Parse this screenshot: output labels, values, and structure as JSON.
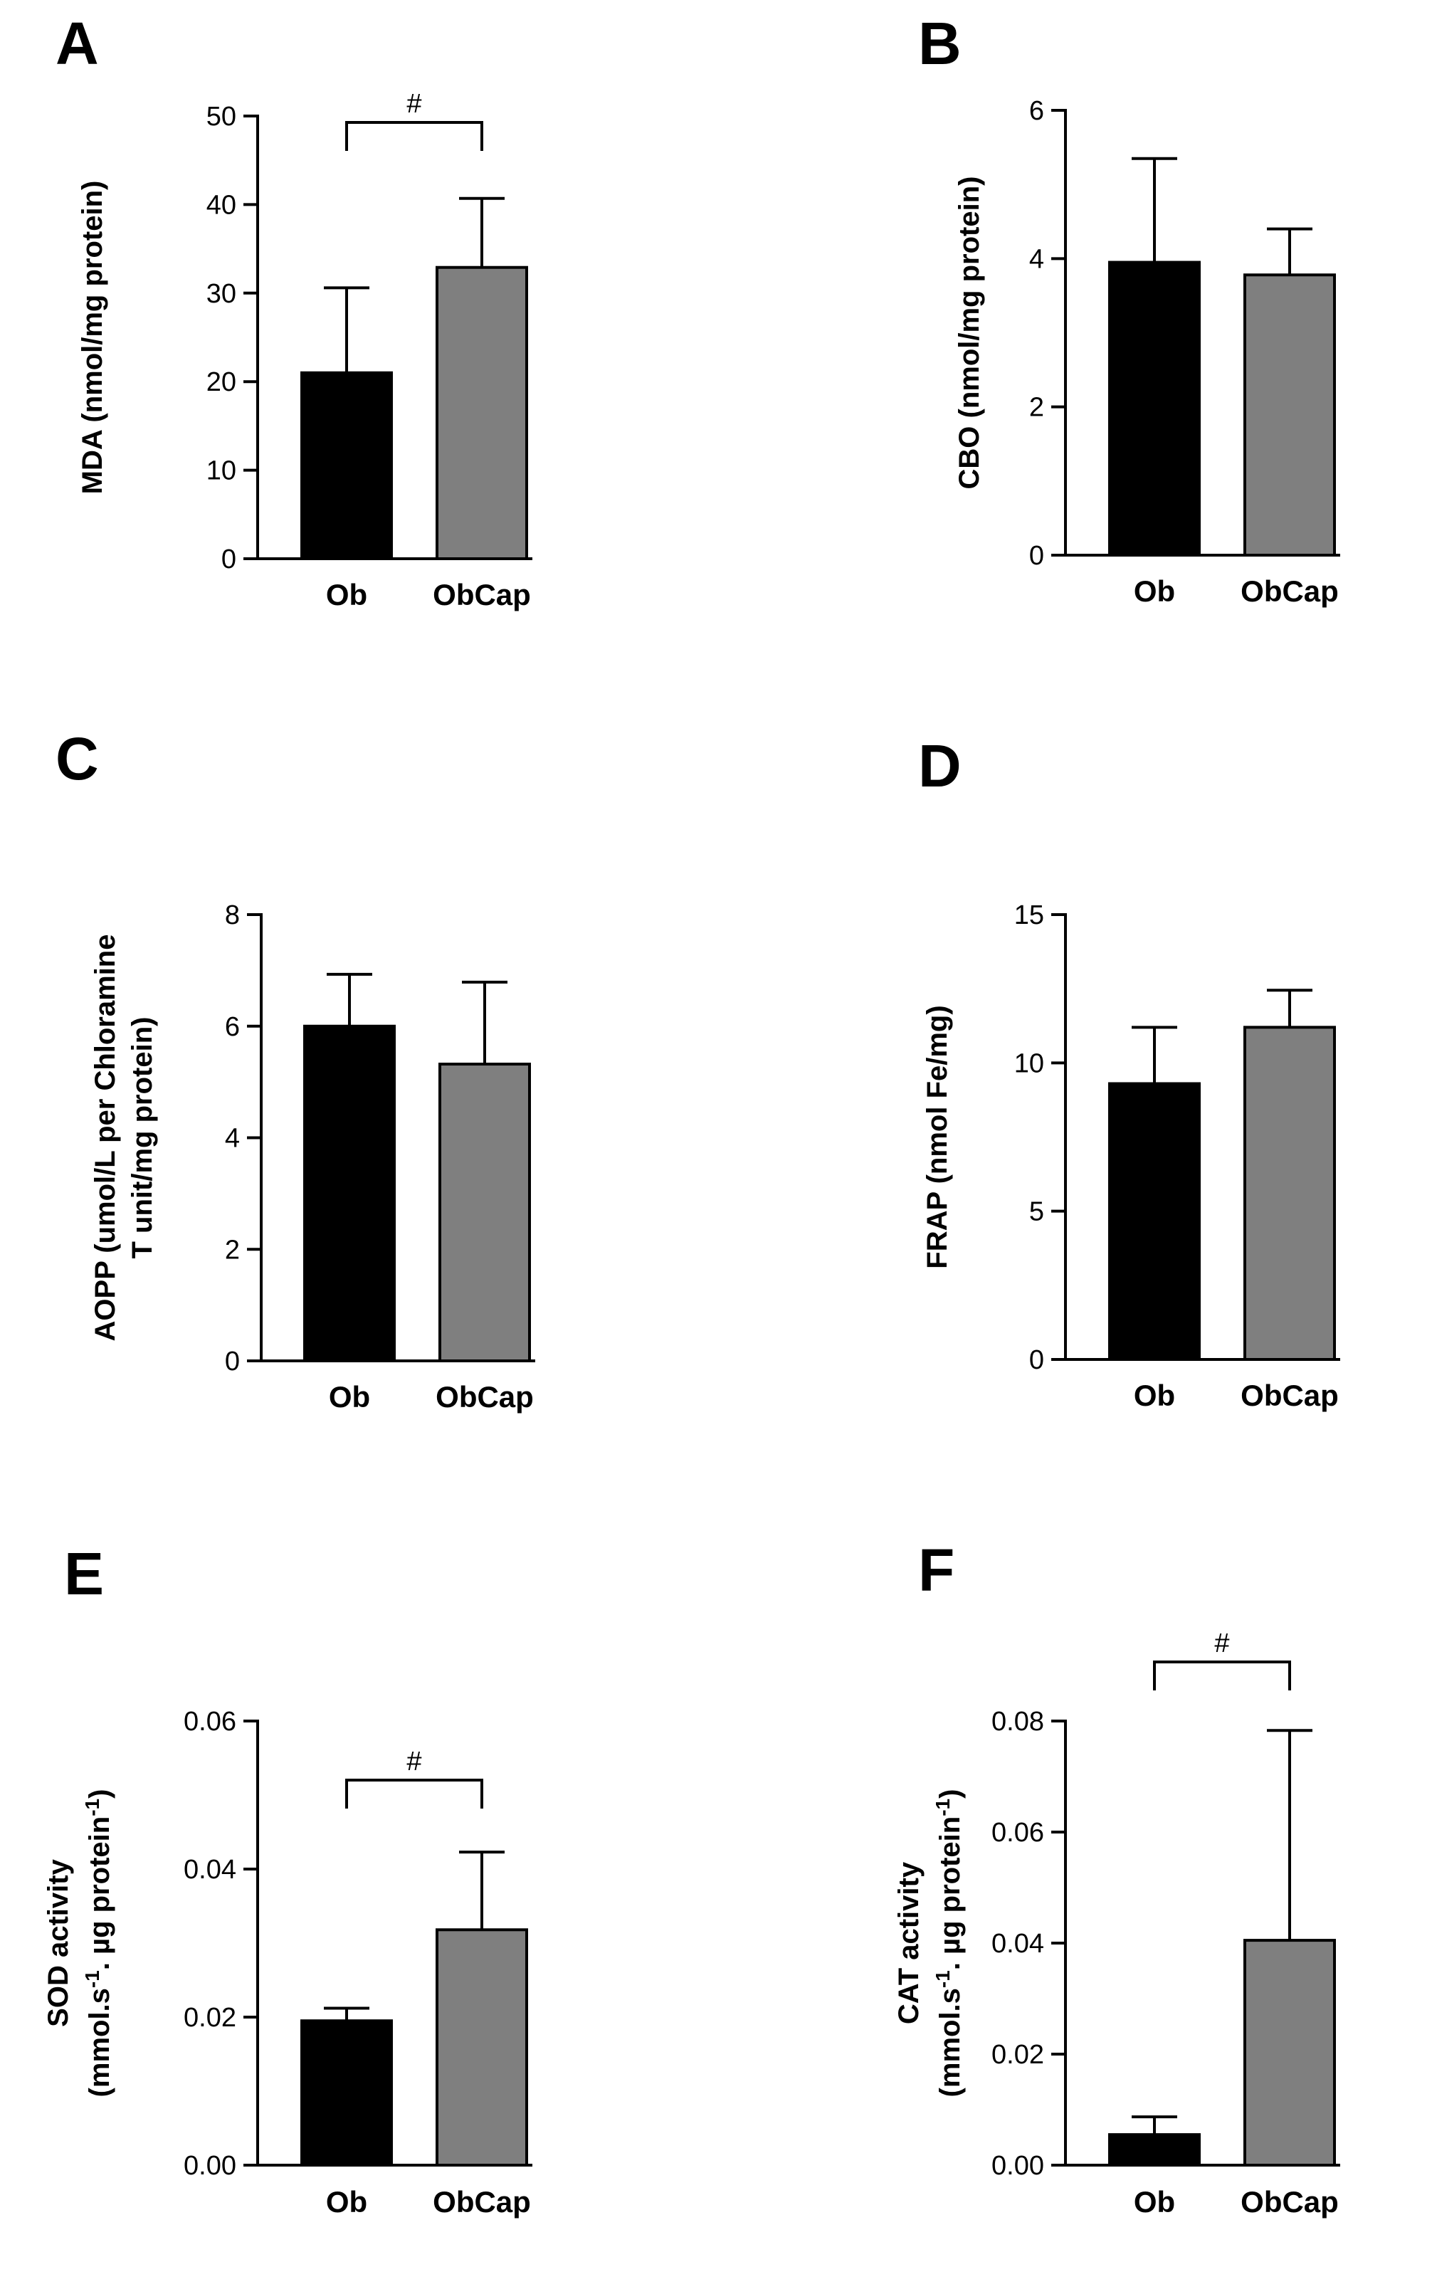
{
  "colors": {
    "ob": "#000000",
    "obcap": "#7f7f7f",
    "axis": "#000000"
  },
  "chart_data": [
    {
      "panel": "A",
      "type": "bar",
      "categories": [
        "Ob",
        "ObCap"
      ],
      "values": [
        21.0,
        32.9
      ],
      "errors": [
        9.6,
        7.8
      ],
      "ylim": [
        0,
        50
      ],
      "yticks": [
        0,
        10,
        20,
        30,
        40,
        50
      ],
      "tick_labels": [
        "0",
        "10",
        "20",
        "30",
        "40",
        "50"
      ],
      "ylabel": [
        "MDA (nmol/mg protein)"
      ],
      "significance": "#"
    },
    {
      "panel": "B",
      "type": "bar",
      "categories": [
        "Ob",
        "ObCap"
      ],
      "values": [
        3.95,
        3.78
      ],
      "errors": [
        1.4,
        0.62
      ],
      "ylim": [
        0,
        6
      ],
      "yticks": [
        0,
        2,
        4,
        6
      ],
      "tick_labels": [
        "0",
        "2",
        "4",
        "6"
      ],
      "ylabel": [
        "CBO (nmol/mg protein)"
      ],
      "significance": ""
    },
    {
      "panel": "C",
      "type": "bar",
      "categories": [
        "Ob",
        "ObCap"
      ],
      "values": [
        6.0,
        5.32
      ],
      "errors": [
        0.93,
        1.47
      ],
      "ylim": [
        0,
        8
      ],
      "yticks": [
        0,
        2,
        4,
        6,
        8
      ],
      "tick_labels": [
        "0",
        "2",
        "4",
        "6",
        "8"
      ],
      "ylabel": [
        "AOPP (umol/L per Chloramine",
        "T unit/mg protein)"
      ],
      "significance": ""
    },
    {
      "panel": "D",
      "type": "bar",
      "categories": [
        "Ob",
        "ObCap"
      ],
      "values": [
        9.3,
        11.2
      ],
      "errors": [
        1.9,
        1.25
      ],
      "ylim": [
        0,
        15
      ],
      "yticks": [
        0,
        5,
        10,
        15
      ],
      "tick_labels": [
        "0",
        "5",
        "10",
        "15"
      ],
      "ylabel": [
        "FRAP (nmol Fe/mg)"
      ],
      "significance": ""
    },
    {
      "panel": "E",
      "type": "bar",
      "categories": [
        "Ob",
        "ObCap"
      ],
      "values": [
        0.0195,
        0.0318
      ],
      "errors": [
        0.0017,
        0.0105
      ],
      "ylim": [
        0,
        0.06
      ],
      "yticks": [
        0,
        0.02,
        0.04,
        0.06
      ],
      "tick_labels": [
        "0.00",
        "0.02",
        "0.04",
        "0.06"
      ],
      "ylabel": [
        "SOD activity",
        "(mmol.s",
        "-1",
        ". µg protein",
        "-1",
        ")"
      ],
      "significance": "#"
    },
    {
      "panel": "F",
      "type": "bar",
      "categories": [
        "Ob",
        "ObCap"
      ],
      "values": [
        0.0055,
        0.0405
      ],
      "errors": [
        0.0032,
        0.0378
      ],
      "ylim": [
        0,
        0.08
      ],
      "yticks": [
        0,
        0.02,
        0.04,
        0.06,
        0.08
      ],
      "tick_labels": [
        "0.00",
        "0.02",
        "0.04",
        "0.06",
        "0.08"
      ],
      "ylabel": [
        "CAT activity",
        "(mmol.s",
        "-1",
        ". µg protein",
        "-1",
        ")"
      ],
      "significance": "#"
    }
  ]
}
